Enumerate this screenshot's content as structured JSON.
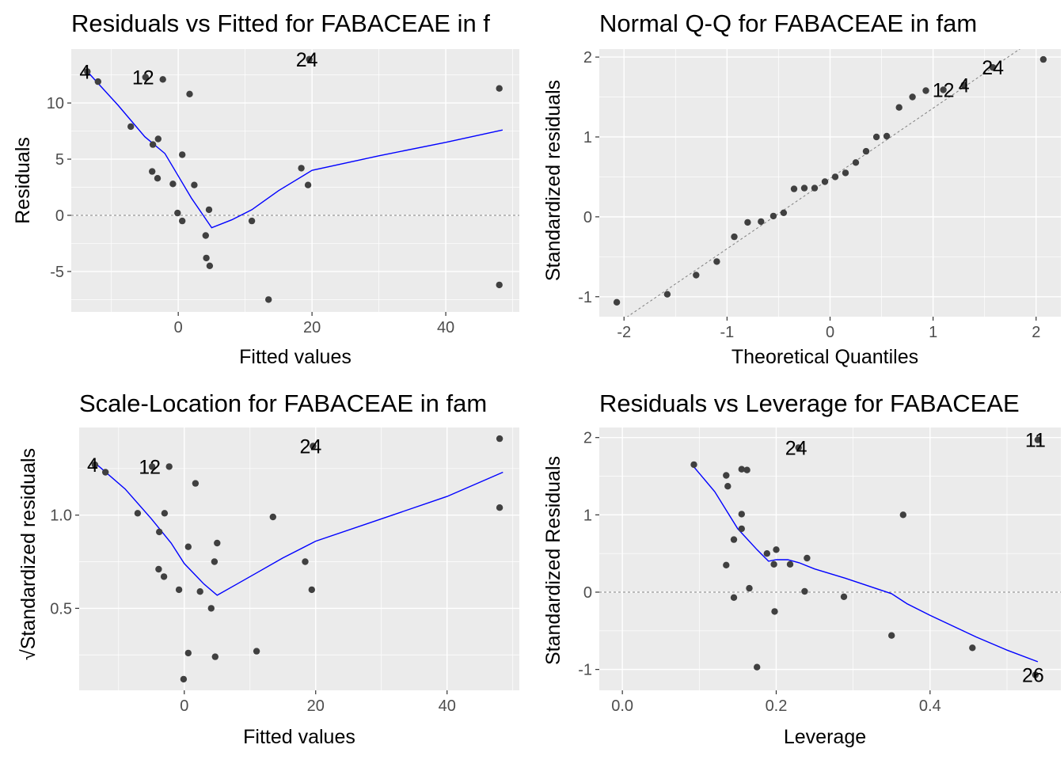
{
  "chart_data": [
    {
      "type": "scatter",
      "title": "Residuals vs Fitted for FABACEAE in f",
      "xlabel": "Fitted values",
      "ylabel": "Residuals",
      "xlim": [
        -16,
        51
      ],
      "ylim": [
        -8.6,
        14.8
      ],
      "xticks": [
        0,
        20,
        40
      ],
      "yticks": [
        -5,
        0,
        5,
        10
      ],
      "reference_line": {
        "kind": "hline",
        "y": 0
      },
      "points": [
        {
          "x": -13.6,
          "y": 12.8
        },
        {
          "x": -12,
          "y": 11.9
        },
        {
          "x": -4.9,
          "y": 12.3
        },
        {
          "x": -2.3,
          "y": 12.1
        },
        {
          "x": 19.6,
          "y": 13.9
        },
        {
          "x": 48,
          "y": 11.3
        },
        {
          "x": 1.7,
          "y": 10.8
        },
        {
          "x": -7.1,
          "y": 7.9
        },
        {
          "x": -3,
          "y": 6.8
        },
        {
          "x": -3.8,
          "y": 6.3
        },
        {
          "x": 0.6,
          "y": 5.4
        },
        {
          "x": -3.9,
          "y": 3.9
        },
        {
          "x": -3.1,
          "y": 3.3
        },
        {
          "x": -0.8,
          "y": 2.8
        },
        {
          "x": 2.4,
          "y": 2.7
        },
        {
          "x": 18.4,
          "y": 4.2
        },
        {
          "x": 19.4,
          "y": 2.7
        },
        {
          "x": -0.1,
          "y": 0.2
        },
        {
          "x": 0.6,
          "y": -0.5
        },
        {
          "x": 4.6,
          "y": 0.5
        },
        {
          "x": 11,
          "y": -0.5
        },
        {
          "x": 4.1,
          "y": -1.8
        },
        {
          "x": 4.2,
          "y": -3.8
        },
        {
          "x": 4.7,
          "y": -4.5
        },
        {
          "x": 13.5,
          "y": -7.5
        },
        {
          "x": 48,
          "y": -6.2
        }
      ],
      "smooth": [
        {
          "x": -13.6,
          "y": 12.8
        },
        {
          "x": -9,
          "y": 9.8
        },
        {
          "x": -5,
          "y": 7
        },
        {
          "x": -2,
          "y": 5.5
        },
        {
          "x": 0,
          "y": 3.5
        },
        {
          "x": 2,
          "y": 1.5
        },
        {
          "x": 5,
          "y": -1.1
        },
        {
          "x": 8,
          "y": -0.4
        },
        {
          "x": 11,
          "y": 0.5
        },
        {
          "x": 15,
          "y": 2.2
        },
        {
          "x": 20,
          "y": 4
        },
        {
          "x": 30,
          "y": 5.3
        },
        {
          "x": 40,
          "y": 6.5
        },
        {
          "x": 48.5,
          "y": 7.6
        }
      ],
      "labels": [
        {
          "text": "4",
          "x": -13.6,
          "y": 12.8
        },
        {
          "text": "12",
          "x": -4.9,
          "y": 12.3
        },
        {
          "text": "24",
          "x": 19.6,
          "y": 13.9
        }
      ]
    },
    {
      "type": "scatter",
      "title": "Normal Q-Q for FABACEAE in fam",
      "xlabel": "Theoretical Quantiles",
      "ylabel": "Standardized residuals",
      "xlim": [
        -2.24,
        2.24
      ],
      "ylim": [
        -1.25,
        2.1
      ],
      "xticks": [
        -2,
        -1,
        0,
        1,
        2
      ],
      "yticks": [
        -1,
        0,
        1,
        2
      ],
      "reference_line": {
        "kind": "line",
        "intercept": 0.48,
        "slope": 0.88
      },
      "points": [
        {
          "x": -2.07,
          "y": -1.07
        },
        {
          "x": -1.58,
          "y": -0.97
        },
        {
          "x": -1.3,
          "y": -0.73
        },
        {
          "x": -1.1,
          "y": -0.56
        },
        {
          "x": -0.93,
          "y": -0.25
        },
        {
          "x": -0.8,
          "y": -0.07
        },
        {
          "x": -0.67,
          "y": -0.06
        },
        {
          "x": -0.55,
          "y": 0.01
        },
        {
          "x": -0.45,
          "y": 0.05
        },
        {
          "x": -0.35,
          "y": 0.35
        },
        {
          "x": -0.25,
          "y": 0.36
        },
        {
          "x": -0.15,
          "y": 0.36
        },
        {
          "x": -0.05,
          "y": 0.44
        },
        {
          "x": 0.05,
          "y": 0.5
        },
        {
          "x": 0.15,
          "y": 0.55
        },
        {
          "x": 0.25,
          "y": 0.68
        },
        {
          "x": 0.35,
          "y": 0.82
        },
        {
          "x": 0.45,
          "y": 1.0
        },
        {
          "x": 0.55,
          "y": 1.01
        },
        {
          "x": 0.67,
          "y": 1.37
        },
        {
          "x": 0.8,
          "y": 1.5
        },
        {
          "x": 0.93,
          "y": 1.58
        },
        {
          "x": 1.1,
          "y": 1.59
        },
        {
          "x": 1.3,
          "y": 1.65
        },
        {
          "x": 1.58,
          "y": 1.87
        },
        {
          "x": 2.07,
          "y": 1.97
        }
      ],
      "labels": [
        {
          "text": "12",
          "x": 1.1,
          "y": 1.59
        },
        {
          "text": "4",
          "x": 1.3,
          "y": 1.65
        },
        {
          "text": "24",
          "x": 1.58,
          "y": 1.87
        }
      ]
    },
    {
      "type": "scatter",
      "title": "Scale-Location for FABACEAE in fam",
      "xlabel": "Fitted values",
      "ylabel": "√Standardized residuals",
      "xlim": [
        -16,
        51
      ],
      "ylim": [
        0.06,
        1.47
      ],
      "xticks": [
        0,
        20,
        40
      ],
      "yticks": [
        0.5,
        1.0
      ],
      "points": [
        {
          "x": -13.6,
          "y": 1.27
        },
        {
          "x": -12,
          "y": 1.23
        },
        {
          "x": -4.9,
          "y": 1.26
        },
        {
          "x": -2.3,
          "y": 1.26
        },
        {
          "x": 19.6,
          "y": 1.37
        },
        {
          "x": 48,
          "y": 1.41
        },
        {
          "x": 1.7,
          "y": 1.17
        },
        {
          "x": -7.1,
          "y": 1.01
        },
        {
          "x": -3,
          "y": 1.01
        },
        {
          "x": -3.8,
          "y": 0.91
        },
        {
          "x": 0.6,
          "y": 0.83
        },
        {
          "x": 4.6,
          "y": 0.75
        },
        {
          "x": 5,
          "y": 0.85
        },
        {
          "x": 13.5,
          "y": 0.99
        },
        {
          "x": 48,
          "y": 1.04
        },
        {
          "x": -3.9,
          "y": 0.71
        },
        {
          "x": -3.1,
          "y": 0.67
        },
        {
          "x": -0.8,
          "y": 0.6
        },
        {
          "x": 2.4,
          "y": 0.59
        },
        {
          "x": 18.4,
          "y": 0.75
        },
        {
          "x": 19.4,
          "y": 0.6
        },
        {
          "x": 4.1,
          "y": 0.5
        },
        {
          "x": 0.6,
          "y": 0.26
        },
        {
          "x": 4.7,
          "y": 0.24
        },
        {
          "x": 11,
          "y": 0.27
        },
        {
          "x": -0.1,
          "y": 0.12
        }
      ],
      "smooth": [
        {
          "x": -13.6,
          "y": 1.28
        },
        {
          "x": -9,
          "y": 1.14
        },
        {
          "x": -5,
          "y": 0.98
        },
        {
          "x": -2,
          "y": 0.85
        },
        {
          "x": 0,
          "y": 0.74
        },
        {
          "x": 3,
          "y": 0.63
        },
        {
          "x": 5,
          "y": 0.57
        },
        {
          "x": 8,
          "y": 0.63
        },
        {
          "x": 11,
          "y": 0.69
        },
        {
          "x": 15,
          "y": 0.77
        },
        {
          "x": 20,
          "y": 0.86
        },
        {
          "x": 30,
          "y": 0.98
        },
        {
          "x": 40,
          "y": 1.1
        },
        {
          "x": 48.5,
          "y": 1.23
        }
      ],
      "labels": [
        {
          "text": "4",
          "x": -13.6,
          "y": 1.27
        },
        {
          "text": "12",
          "x": -4.9,
          "y": 1.26
        },
        {
          "text": "24",
          "x": 19.6,
          "y": 1.37
        }
      ]
    },
    {
      "type": "scatter",
      "title": "Residuals vs Leverage for FABACEAE",
      "xlabel": "Leverage",
      "ylabel": "Standardized Residuals",
      "xlim": [
        -0.03,
        0.57
      ],
      "ylim": [
        -1.27,
        2.13
      ],
      "xticks": [
        0.0,
        0.2,
        0.4
      ],
      "yticks": [
        -1,
        0,
        1,
        2
      ],
      "reference_line": {
        "kind": "hline",
        "y": 0
      },
      "points": [
        {
          "x": 0.093,
          "y": 1.65
        },
        {
          "x": 0.135,
          "y": 1.51
        },
        {
          "x": 0.137,
          "y": 1.37
        },
        {
          "x": 0.155,
          "y": 1.59
        },
        {
          "x": 0.162,
          "y": 1.58
        },
        {
          "x": 0.155,
          "y": 1.01
        },
        {
          "x": 0.155,
          "y": 0.82
        },
        {
          "x": 0.145,
          "y": 0.68
        },
        {
          "x": 0.135,
          "y": 0.35
        },
        {
          "x": 0.188,
          "y": 0.5
        },
        {
          "x": 0.2,
          "y": 0.55
        },
        {
          "x": 0.197,
          "y": 0.36
        },
        {
          "x": 0.218,
          "y": 0.36
        },
        {
          "x": 0.24,
          "y": 0.44
        },
        {
          "x": 0.165,
          "y": 0.05
        },
        {
          "x": 0.145,
          "y": -0.07
        },
        {
          "x": 0.237,
          "y": 0.01
        },
        {
          "x": 0.288,
          "y": -0.06
        },
        {
          "x": 0.198,
          "y": -0.25
        },
        {
          "x": 0.175,
          "y": -0.97
        },
        {
          "x": 0.35,
          "y": -0.56
        },
        {
          "x": 0.365,
          "y": 1.0
        },
        {
          "x": 0.455,
          "y": -0.72
        },
        {
          "x": 0.229,
          "y": 1.87
        },
        {
          "x": 0.54,
          "y": 1.97
        },
        {
          "x": 0.537,
          "y": -1.07
        }
      ],
      "smooth": [
        {
          "x": 0.093,
          "y": 1.62
        },
        {
          "x": 0.12,
          "y": 1.3
        },
        {
          "x": 0.15,
          "y": 0.82
        },
        {
          "x": 0.175,
          "y": 0.55
        },
        {
          "x": 0.19,
          "y": 0.4
        },
        {
          "x": 0.2,
          "y": 0.42
        },
        {
          "x": 0.215,
          "y": 0.42
        },
        {
          "x": 0.23,
          "y": 0.38
        },
        {
          "x": 0.25,
          "y": 0.3
        },
        {
          "x": 0.29,
          "y": 0.18
        },
        {
          "x": 0.35,
          "y": -0.02
        },
        {
          "x": 0.37,
          "y": -0.15
        },
        {
          "x": 0.4,
          "y": -0.3
        },
        {
          "x": 0.46,
          "y": -0.58
        },
        {
          "x": 0.5,
          "y": -0.75
        },
        {
          "x": 0.54,
          "y": -0.9
        }
      ],
      "labels": [
        {
          "text": "24",
          "x": 0.229,
          "y": 1.87
        },
        {
          "text": "11",
          "x": 0.54,
          "y": 1.97
        },
        {
          "text": "26",
          "x": 0.537,
          "y": -1.07
        }
      ]
    }
  ]
}
